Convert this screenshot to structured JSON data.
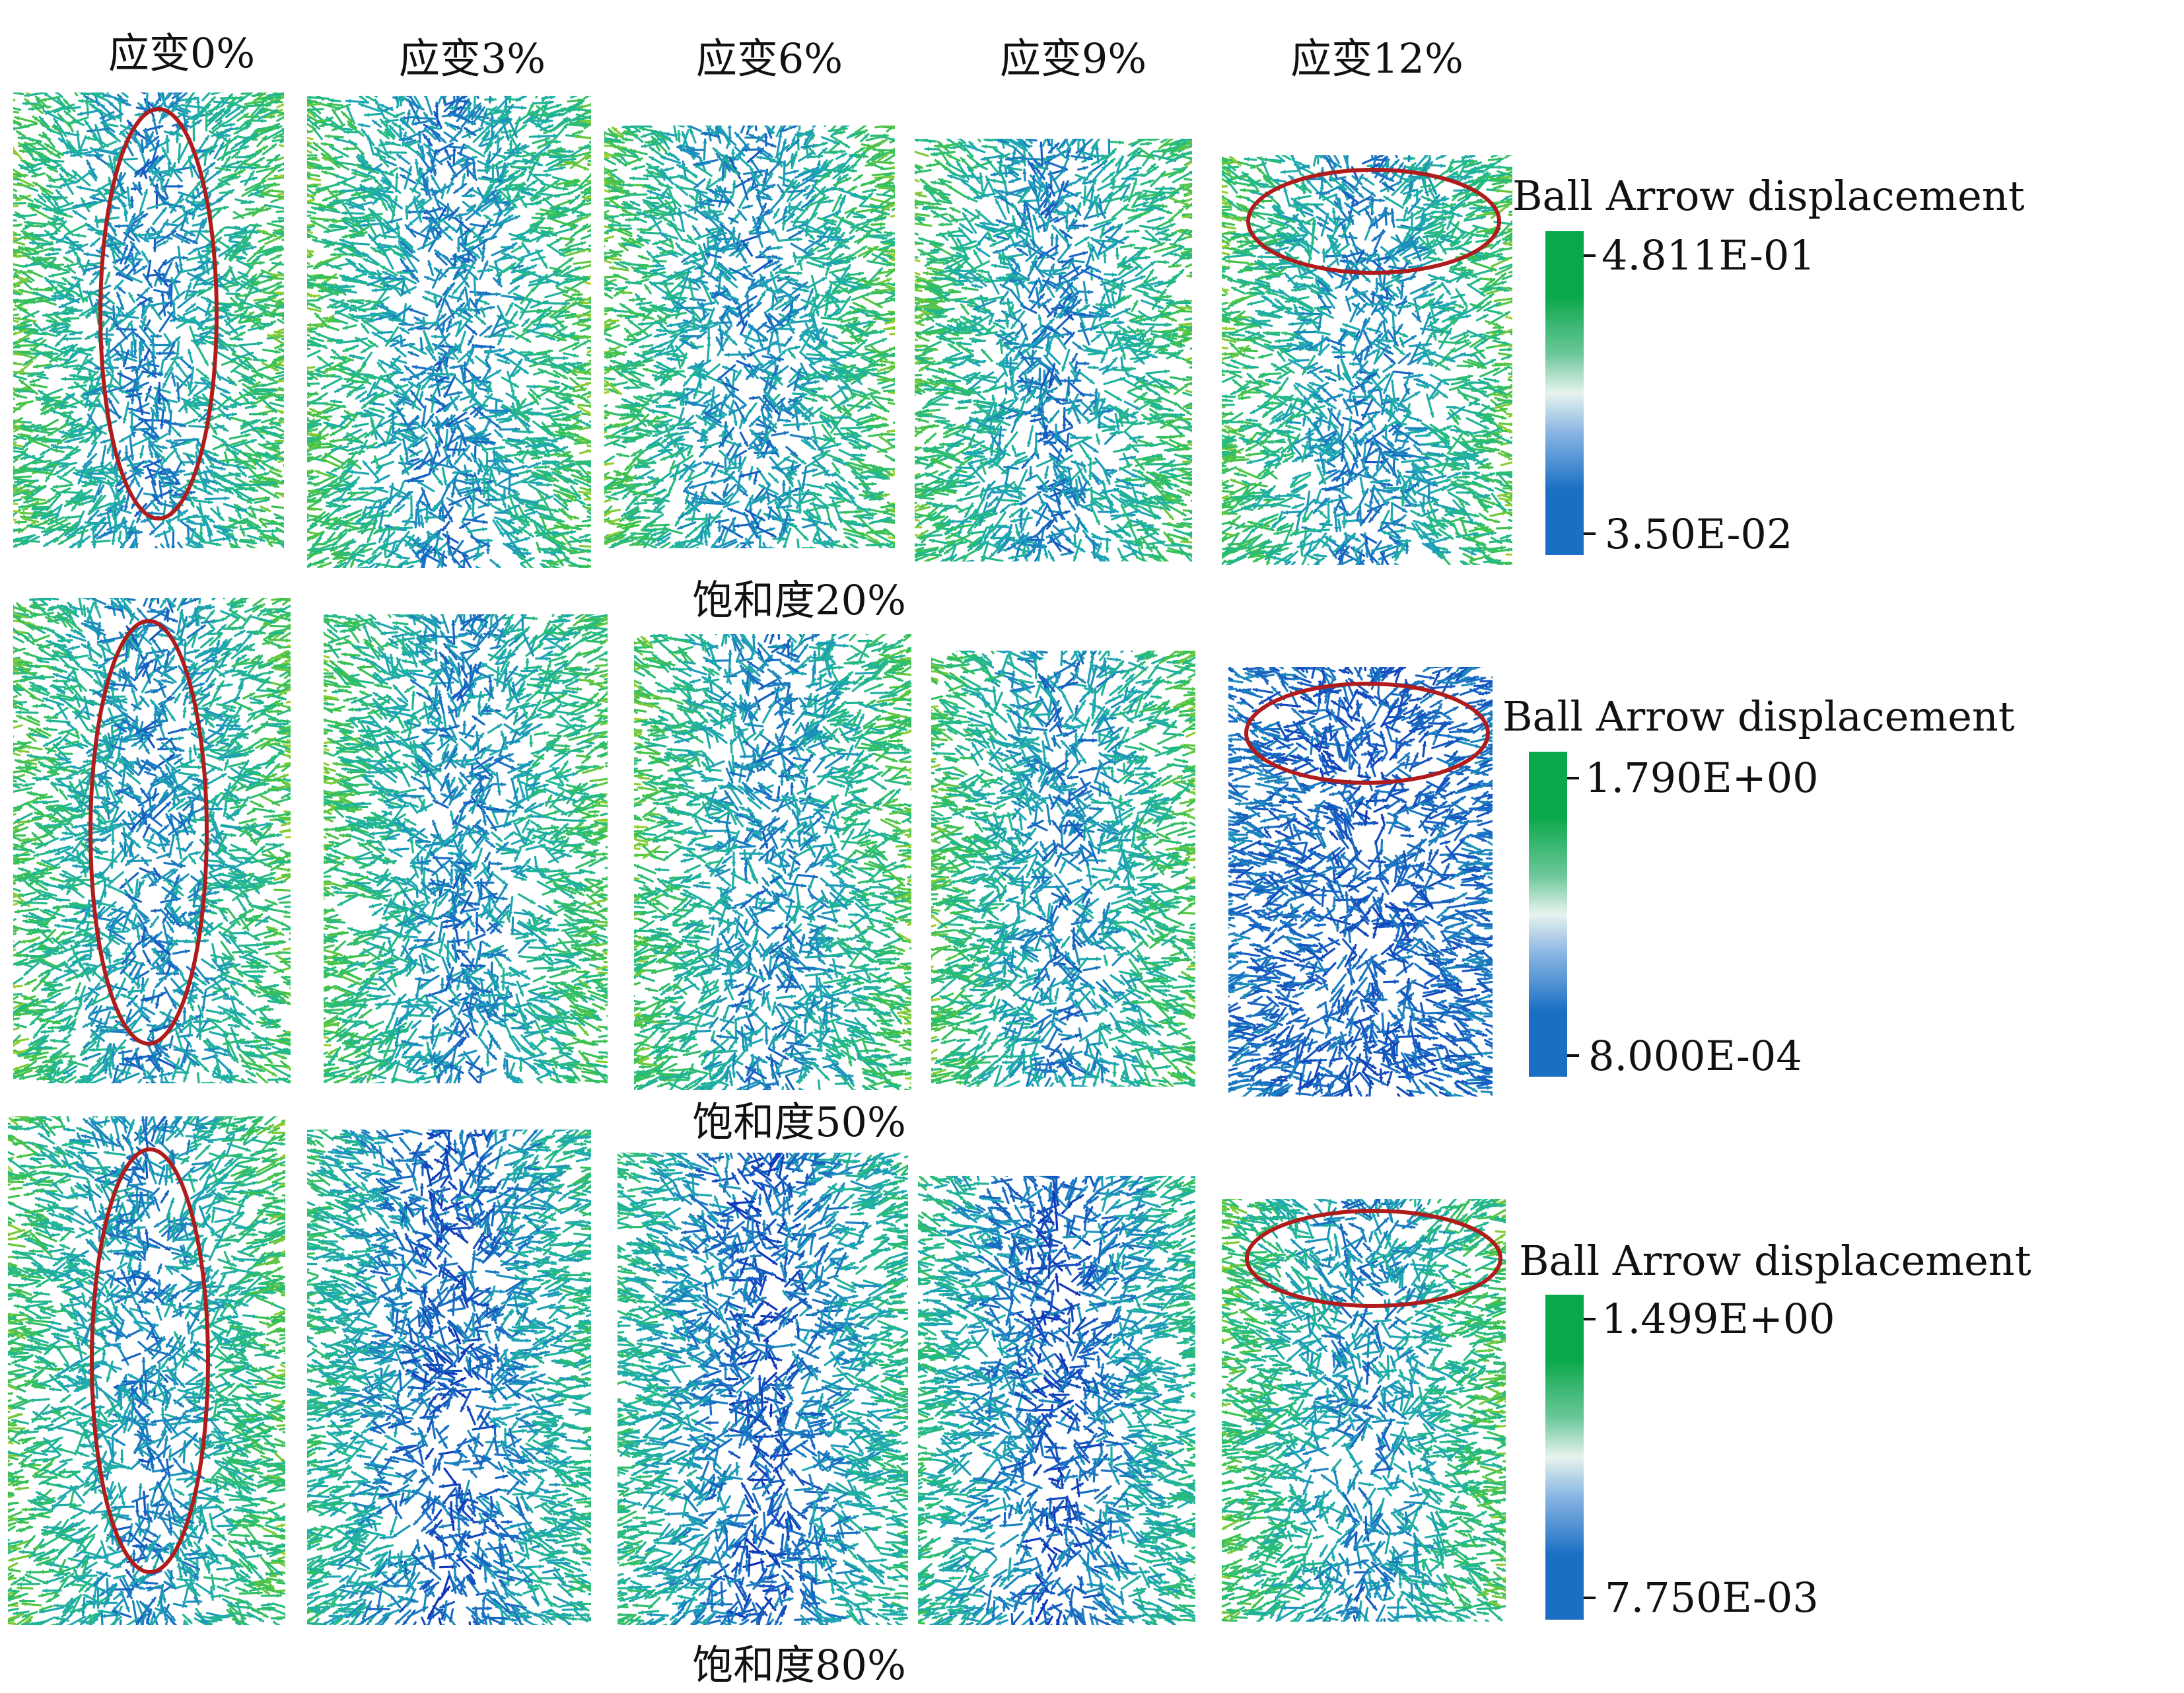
{
  "columns": [
    "应变0%",
    "应变3%",
    "应变6%",
    "应变9%",
    "应变12%"
  ],
  "rows": [
    {
      "label": "饱和度20%",
      "legend": {
        "title": "Ball Arrow displacement",
        "max": "4.811E-01",
        "min": "3.50E-02"
      }
    },
    {
      "label": "饱和度50%",
      "legend": {
        "title": "Ball Arrow displacement",
        "max": "1.790E+00",
        "min": "8.000E-04"
      }
    },
    {
      "label": "饱和度80%",
      "legend": {
        "title": "Ball Arrow displacement",
        "max": "1.499E+00",
        "min": "7.750E-03"
      }
    }
  ],
  "colors": {
    "scale_high": "#0aa84a",
    "scale_mid": "#e8f3ee",
    "scale_low": "#1a6fc4",
    "highlight_ellipse": "#b01c1c"
  }
}
